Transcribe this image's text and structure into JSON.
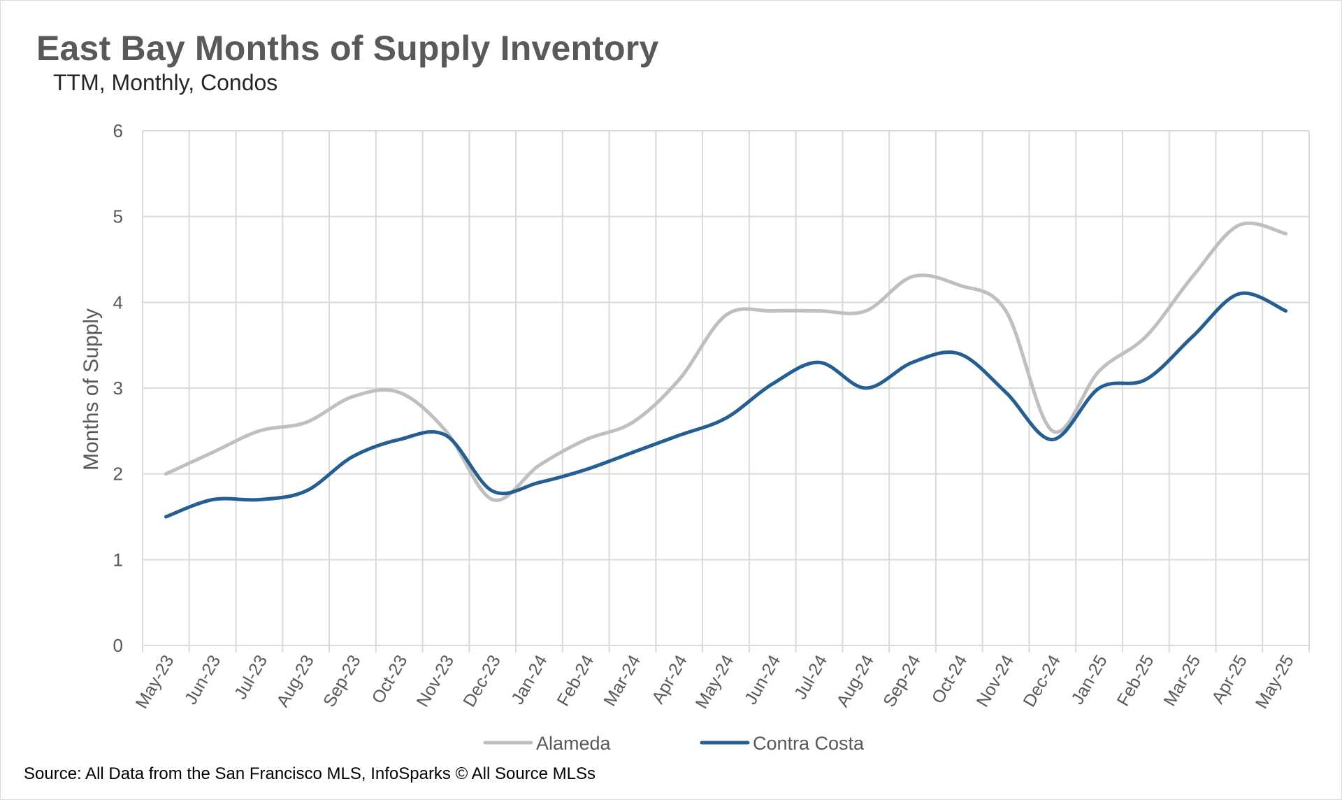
{
  "title": "East Bay Months of Supply Inventory",
  "subtitle": "TTM, Monthly, Condos",
  "source": "Source: All Data from the San Francisco MLS, InfoSparks © All Source MLSs",
  "chart_data": {
    "type": "line",
    "title": "East Bay Months of Supply Inventory",
    "subtitle": "TTM, Monthly, Condos",
    "xlabel": "",
    "ylabel": "Months of Supply",
    "ylim": [
      0,
      6
    ],
    "yticks": [
      0,
      1,
      2,
      3,
      4,
      5,
      6
    ],
    "grid": true,
    "legend": "bottom",
    "categories": [
      "May-23",
      "Jun-23",
      "Jul-23",
      "Aug-23",
      "Sep-23",
      "Oct-23",
      "Nov-23",
      "Dec-23",
      "Jan-24",
      "Feb-24",
      "Mar-24",
      "Apr-24",
      "May-24",
      "Jun-24",
      "Jul-24",
      "Aug-24",
      "Sep-24",
      "Oct-24",
      "Nov-24",
      "Dec-24",
      "Jan-25",
      "Feb-25",
      "Mar-25",
      "Apr-25",
      "May-25"
    ],
    "series": [
      {
        "name": "Alameda",
        "color": "#bfbfbf",
        "values": [
          2.0,
          2.25,
          2.5,
          2.6,
          2.9,
          2.95,
          2.5,
          1.7,
          2.1,
          2.4,
          2.6,
          3.1,
          3.85,
          3.9,
          3.9,
          3.9,
          4.3,
          4.2,
          3.9,
          2.5,
          3.2,
          3.6,
          4.3,
          4.9,
          4.8
        ]
      },
      {
        "name": "Contra Costa",
        "color": "#255e91",
        "values": [
          1.5,
          1.7,
          1.7,
          1.8,
          2.2,
          2.4,
          2.45,
          1.8,
          1.9,
          2.05,
          2.25,
          2.45,
          2.65,
          3.05,
          3.3,
          3.0,
          3.3,
          3.4,
          2.95,
          2.4,
          3.0,
          3.1,
          3.6,
          4.1,
          3.9
        ]
      }
    ]
  }
}
